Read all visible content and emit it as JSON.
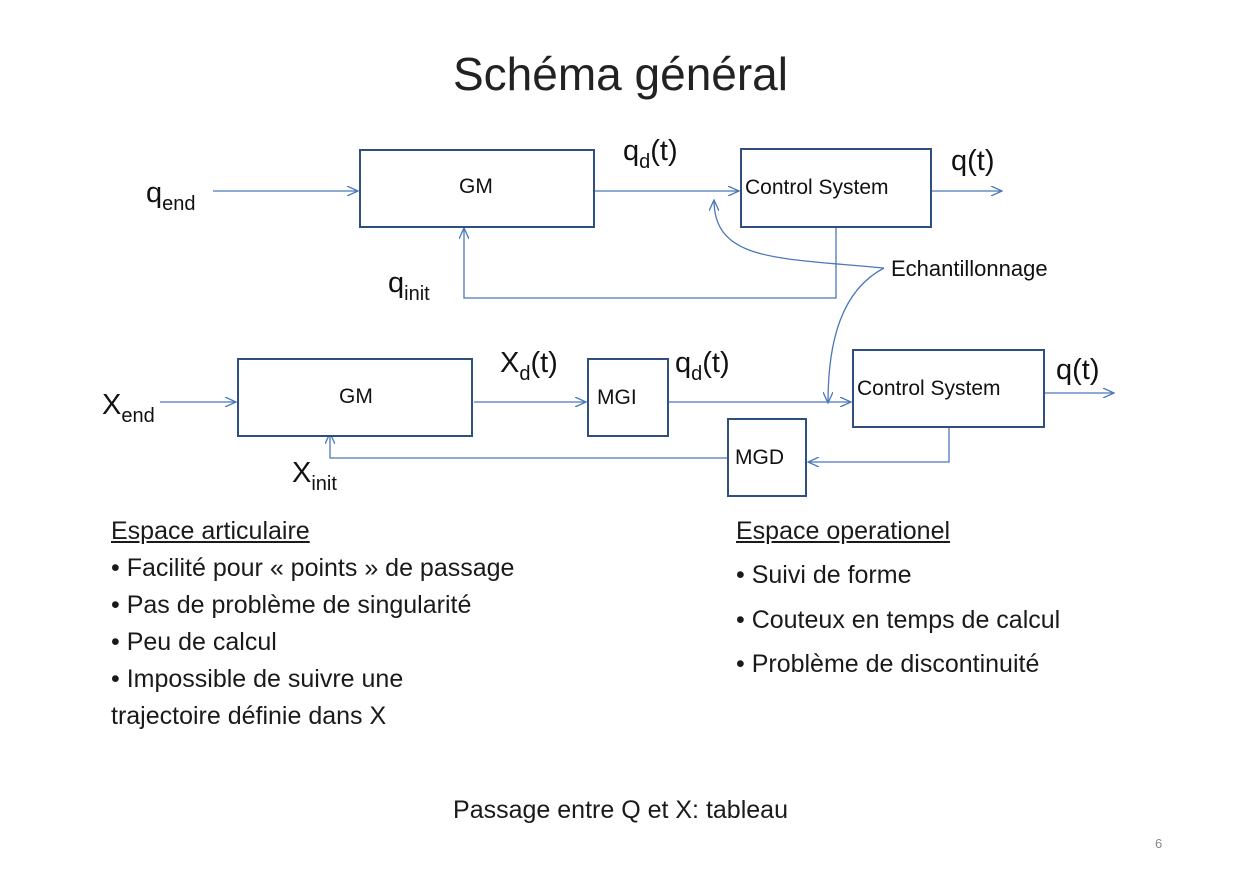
{
  "title": "Schéma général",
  "diagram_top": {
    "input_label": {
      "base": "q",
      "sub": "end"
    },
    "init_label": {
      "base": "q",
      "sub": "init"
    },
    "gm_label": "GM",
    "desired_label": {
      "base": "q",
      "sub": "d",
      "rest": "(t)"
    },
    "control_label": "Control System",
    "output_label": "q(t)"
  },
  "sampling_label": "Echantillonnage",
  "diagram_bottom": {
    "input_label": {
      "base": "X",
      "sub": "end"
    },
    "init_label": {
      "base": "X",
      "sub": "init"
    },
    "gm_label": "GM",
    "desired_x_label": {
      "base": "X",
      "sub": "d",
      "rest": "(t)"
    },
    "mgi_label": "MGI",
    "desired_q_label": {
      "base": "q",
      "sub": "d",
      "rest": "(t)"
    },
    "control_label": "Control System",
    "output_label": "q(t)",
    "mgd_label": "MGD"
  },
  "left_column": {
    "heading": "Espace articulaire",
    "items": [
      "• Facilité pour « points » de passage",
      "• Pas de problème de singularité",
      "• Peu de calcul",
      "• Impossible de suivre une",
      "trajectoire définie dans X"
    ]
  },
  "right_column": {
    "heading": "Espace operationel",
    "items": [
      "• Suivi de forme",
      "• Couteux en temps de calcul",
      "• Problème de discontinuité"
    ]
  },
  "footer_text": "Passage entre Q et X: tableau",
  "page_number": "6",
  "colors": {
    "line": "#4a78b8",
    "box_border": "#2f4f7f"
  }
}
